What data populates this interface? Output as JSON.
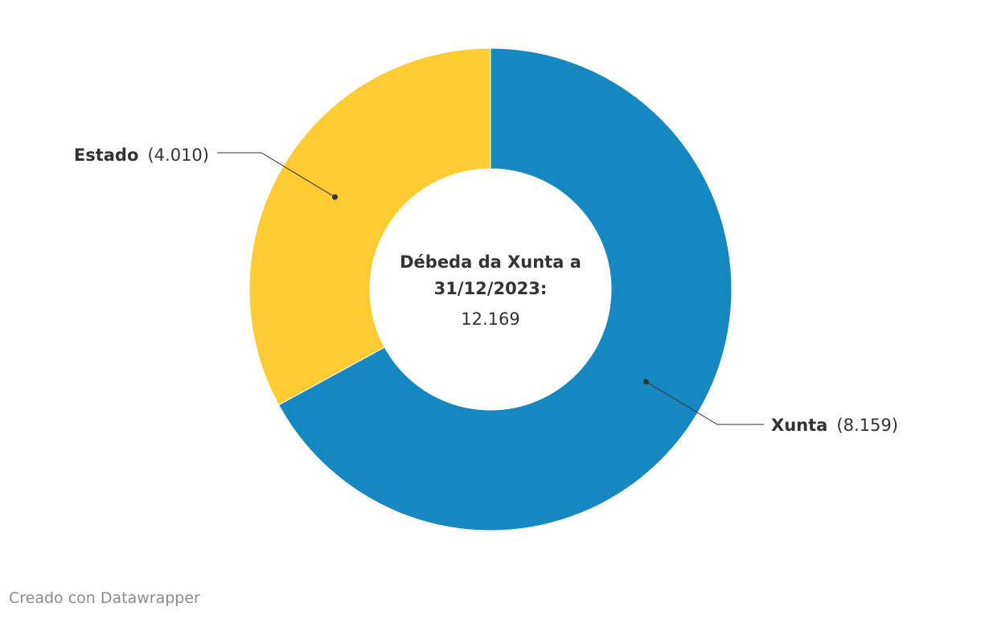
{
  "chart_data": {
    "type": "pie",
    "donut": true,
    "center_label": {
      "line1": "Débeda da Xunta a",
      "line2": "31/12/2023:",
      "total": "12.169"
    },
    "slices": [
      {
        "name": "Xunta",
        "value": 8159,
        "value_label": "(8.159)",
        "color": "#1587c1"
      },
      {
        "name": "Estado",
        "value": 4010,
        "value_label": "(4.010)",
        "color": "#fecb33"
      }
    ]
  },
  "footer": {
    "credit": "Creado con Datawrapper"
  }
}
